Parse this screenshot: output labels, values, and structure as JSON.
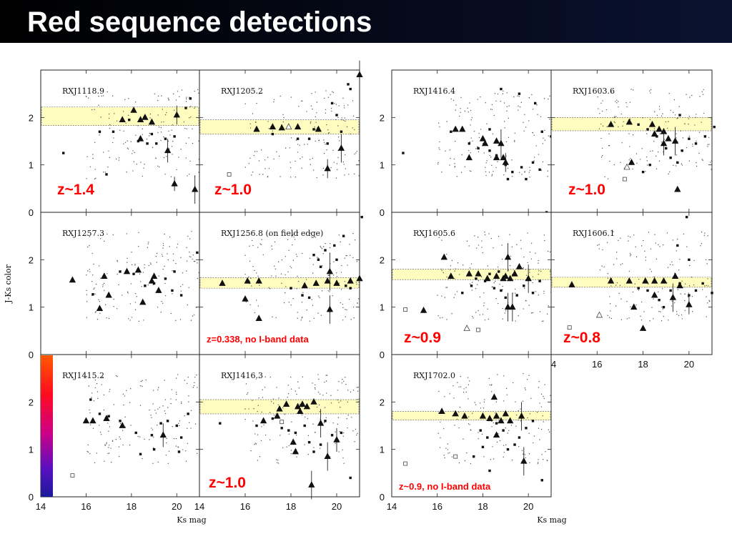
{
  "slide": {
    "title": "Red sequence detections"
  },
  "colors": {
    "title_bar": "#000000",
    "title_text": "#ffffff",
    "band_fill": "#fffcc0",
    "redshift_label": "#ff0000"
  },
  "chart_data": [
    {
      "type": "scatter",
      "block": "left",
      "name": "RXJ1118.9",
      "redshift_label": "z~1.4",
      "band": [
        1.83,
        2.22
      ],
      "triangles": [
        [
          17.6,
          1.95
        ],
        [
          18.1,
          2.15
        ],
        [
          18.4,
          1.95
        ],
        [
          18.6,
          2.0
        ],
        [
          18.9,
          1.9
        ],
        [
          20.0,
          2.05,
          0.2
        ],
        [
          18.4,
          1.55
        ],
        [
          19.6,
          1.3,
          0.25
        ],
        [
          19.9,
          0.6,
          0.15
        ],
        [
          20.8,
          0.48,
          0.3
        ]
      ],
      "squares": [
        [
          15.0,
          1.25
        ],
        [
          16.6,
          1.7
        ],
        [
          17.2,
          1.7
        ],
        [
          18.3,
          1.5
        ],
        [
          18.9,
          1.65
        ],
        [
          19.1,
          1.45
        ],
        [
          19.5,
          1.55
        ],
        [
          19.9,
          1.6
        ],
        [
          20.4,
          2.2
        ],
        [
          20.6,
          2.4
        ],
        [
          17.9,
          1.95
        ],
        [
          18.7,
          1.45
        ],
        [
          16.9,
          0.8
        ]
      ],
      "open_squares": []
    },
    {
      "type": "scatter",
      "block": "left",
      "name": "RXJ1205.2",
      "redshift_label": "z~1.0",
      "band": [
        1.65,
        1.95
      ],
      "triangles": [
        [
          16.5,
          1.75
        ],
        [
          17.6,
          1.78
        ],
        [
          18.3,
          1.8
        ],
        [
          19.2,
          1.75
        ],
        [
          19.6,
          0.92,
          0.2
        ],
        [
          20.2,
          1.35,
          0.3
        ],
        [
          21.0,
          2.9,
          0.3
        ],
        [
          17.2,
          1.8
        ]
      ],
      "squares": [
        [
          17.2,
          1.65
        ],
        [
          18.3,
          1.55
        ],
        [
          18.8,
          1.55
        ],
        [
          19.0,
          1.75
        ],
        [
          19.6,
          1.45
        ],
        [
          20.0,
          2.05
        ],
        [
          20.5,
          2.7
        ],
        [
          20.6,
          2.6
        ],
        [
          19.8,
          2.3
        ],
        [
          20.2,
          1.7
        ]
      ],
      "open_squares": [
        [
          15.3,
          0.8
        ]
      ],
      "open_triangles": [
        [
          17.9,
          1.8
        ]
      ]
    },
    {
      "type": "scatter",
      "block": "left",
      "name": "RXJ1257.3",
      "redshift_label": "",
      "band": null,
      "triangles": [
        [
          15.4,
          1.57
        ],
        [
          16.6,
          0.97
        ],
        [
          16.8,
          1.65
        ],
        [
          17.0,
          1.25
        ],
        [
          17.8,
          1.75
        ],
        [
          18.3,
          1.78
        ],
        [
          18.5,
          1.1
        ],
        [
          19.0,
          1.65
        ],
        [
          19.2,
          1.35
        ],
        [
          18.9,
          1.55
        ]
      ],
      "squares": [
        [
          16.3,
          1.27
        ],
        [
          17.5,
          1.75
        ],
        [
          18.1,
          1.7
        ],
        [
          18.6,
          1.45
        ],
        [
          19.0,
          1.5
        ],
        [
          19.5,
          1.6
        ],
        [
          19.8,
          1.35
        ],
        [
          20.2,
          1.25
        ],
        [
          20.9,
          2.15
        ],
        [
          19.9,
          1.75
        ]
      ],
      "open_squares": []
    },
    {
      "type": "scatter",
      "block": "left",
      "name": "RXJ1256.8 (on field edge)",
      "redshift_label": "z=0.338, no I-band data",
      "band": [
        1.4,
        1.62
      ],
      "triangles": [
        [
          15.0,
          1.5
        ],
        [
          16.1,
          1.55
        ],
        [
          16.6,
          1.55
        ],
        [
          16.6,
          0.76
        ],
        [
          16.0,
          1.17
        ],
        [
          18.6,
          1.45
        ],
        [
          19.1,
          1.5
        ],
        [
          19.6,
          1.55
        ],
        [
          19.7,
          0.95,
          0.3
        ],
        [
          20.0,
          1.5
        ],
        [
          20.6,
          1.55
        ],
        [
          21.0,
          1.6,
          0.25
        ],
        [
          19.7,
          1.75,
          0.4
        ]
      ],
      "squares": [
        [
          18.0,
          1.4
        ],
        [
          18.5,
          1.25
        ],
        [
          18.8,
          1.2
        ],
        [
          19.0,
          2.1
        ],
        [
          19.2,
          2.0
        ],
        [
          19.3,
          1.85
        ],
        [
          19.9,
          2.3
        ],
        [
          20.0,
          2.0
        ],
        [
          20.4,
          1.45
        ],
        [
          20.6,
          1.4
        ],
        [
          21.1,
          2.9
        ],
        [
          19.5,
          2.2
        ],
        [
          20.3,
          2.5
        ]
      ],
      "open_squares": []
    },
    {
      "type": "scatter",
      "block": "left",
      "name": "RXJ1415.2",
      "redshift_label": "",
      "band": null,
      "triangles": [
        [
          16.0,
          1.6
        ],
        [
          16.3,
          1.6
        ],
        [
          16.9,
          1.65
        ],
        [
          17.6,
          1.5
        ],
        [
          19.4,
          1.3,
          0.25
        ]
      ],
      "squares": [
        [
          14.3,
          0.9
        ],
        [
          16.2,
          2.05
        ],
        [
          16.6,
          1.75
        ],
        [
          17.0,
          1.7
        ],
        [
          17.5,
          1.6
        ],
        [
          18.2,
          1.35
        ],
        [
          18.4,
          0.9
        ],
        [
          18.9,
          1.3
        ],
        [
          19.3,
          1.55
        ],
        [
          19.6,
          1.6
        ],
        [
          20.0,
          1.5
        ],
        [
          20.1,
          0.95
        ],
        [
          20.5,
          1.75
        ],
        [
          20.2,
          1.25
        ],
        [
          19.0,
          1.0
        ]
      ],
      "open_squares": [
        [
          15.4,
          0.45
        ]
      ]
    },
    {
      "type": "scatter",
      "block": "left",
      "name": "RXJ1416.3",
      "redshift_label": "z~1.0",
      "band": [
        1.75,
        2.05
      ],
      "triangles": [
        [
          17.4,
          1.7
        ],
        [
          17.8,
          1.95
        ],
        [
          18.3,
          1.9
        ],
        [
          18.5,
          1.95
        ],
        [
          18.7,
          1.9
        ],
        [
          19.0,
          2.0
        ],
        [
          19.3,
          1.55,
          0.3
        ],
        [
          19.6,
          0.85,
          0.3
        ],
        [
          20.0,
          1.2,
          0.25
        ],
        [
          18.1,
          1.15
        ],
        [
          18.2,
          0.95
        ],
        [
          18.9,
          0.25,
          0.3
        ],
        [
          16.8,
          1.6
        ],
        [
          17.5,
          1.85
        ],
        [
          18.4,
          1.8
        ]
      ],
      "squares": [
        [
          17.2,
          1.65
        ],
        [
          17.6,
          1.45
        ],
        [
          17.9,
          1.4
        ],
        [
          18.2,
          1.35
        ],
        [
          18.6,
          1.5
        ],
        [
          18.8,
          1.15
        ],
        [
          19.0,
          0.95
        ],
        [
          19.3,
          1.1
        ],
        [
          19.5,
          1.6
        ],
        [
          19.8,
          1.3
        ],
        [
          20.2,
          1.35
        ],
        [
          20.6,
          0.4
        ],
        [
          14.9,
          1.55
        ],
        [
          16.5,
          1.5
        ]
      ],
      "open_squares": [
        [
          17.6,
          1.58
        ]
      ]
    },
    {
      "type": "scatter",
      "block": "right",
      "name": "RXJ1416.4",
      "redshift_label": "",
      "band": null,
      "triangles": [
        [
          16.8,
          1.75
        ],
        [
          17.1,
          1.75
        ],
        [
          18.0,
          1.55
        ],
        [
          18.1,
          1.45
        ],
        [
          18.6,
          1.5
        ],
        [
          18.8,
          1.45,
          0.3
        ],
        [
          19.0,
          1.05,
          0.2
        ],
        [
          17.4,
          1.15
        ],
        [
          18.6,
          1.15
        ],
        [
          18.9,
          1.15
        ]
      ],
      "squares": [
        [
          14.5,
          1.25
        ],
        [
          16.6,
          1.7
        ],
        [
          17.4,
          1.45
        ],
        [
          17.8,
          1.35
        ],
        [
          18.3,
          1.3
        ],
        [
          18.6,
          1.2
        ],
        [
          19.0,
          1.0
        ],
        [
          19.3,
          0.85
        ],
        [
          19.7,
          0.95
        ],
        [
          19.9,
          0.7
        ],
        [
          20.2,
          1.05
        ],
        [
          20.5,
          0.9
        ],
        [
          20.6,
          1.7
        ],
        [
          21.0,
          1.6
        ],
        [
          18.8,
          2.6
        ],
        [
          19.6,
          2.5
        ],
        [
          20.3,
          2.3
        ],
        [
          18.3,
          1.75
        ],
        [
          19.1,
          0.7
        ],
        [
          20.8,
          0.0
        ]
      ],
      "open_squares": []
    },
    {
      "type": "scatter",
      "block": "right",
      "name": "RXJ1603.6",
      "redshift_label": "z~1.0",
      "band": [
        1.72,
        2.0
      ],
      "triangles": [
        [
          16.6,
          1.85
        ],
        [
          17.4,
          1.9
        ],
        [
          18.4,
          1.85
        ],
        [
          18.7,
          1.75
        ],
        [
          18.9,
          1.7
        ],
        [
          18.9,
          1.45,
          0.25
        ],
        [
          18.5,
          1.65
        ],
        [
          19.1,
          1.55
        ],
        [
          19.4,
          1.5,
          0.3
        ],
        [
          17.5,
          1.05
        ],
        [
          19.5,
          0.48
        ]
      ],
      "squares": [
        [
          17.8,
          1.85
        ],
        [
          18.2,
          1.75
        ],
        [
          18.6,
          1.6
        ],
        [
          19.0,
          1.35
        ],
        [
          19.2,
          1.15
        ],
        [
          19.5,
          1.05
        ],
        [
          19.7,
          1.3
        ],
        [
          20.0,
          1.55
        ],
        [
          20.3,
          1.45
        ],
        [
          20.7,
          1.6
        ],
        [
          21.1,
          1.8
        ],
        [
          18.0,
          0.85
        ],
        [
          18.3,
          1.0
        ],
        [
          19.6,
          2.05
        ]
      ],
      "open_squares": [
        [
          17.2,
          0.7
        ]
      ],
      "open_triangles": [
        [
          17.3,
          0.95
        ]
      ]
    },
    {
      "type": "scatter",
      "block": "right",
      "name": "RXJ1605.6",
      "redshift_label": "z~0.9",
      "band": [
        1.58,
        1.8
      ],
      "triangles": [
        [
          16.6,
          1.65
        ],
        [
          17.4,
          1.7
        ],
        [
          17.8,
          1.7
        ],
        [
          18.2,
          1.6
        ],
        [
          18.6,
          1.65
        ],
        [
          18.9,
          1.6
        ],
        [
          19.0,
          1.65
        ],
        [
          19.2,
          1.6
        ],
        [
          19.4,
          1.7
        ],
        [
          19.1,
          2.05,
          0.3
        ],
        [
          19.6,
          1.85
        ],
        [
          19.1,
          1.0,
          0.3
        ],
        [
          19.3,
          1.0,
          0.3
        ],
        [
          20.0,
          1.6,
          0.3
        ],
        [
          15.4,
          0.93
        ],
        [
          16.3,
          2.05
        ]
      ],
      "squares": [
        [
          17.1,
          1.3
        ],
        [
          17.5,
          1.45
        ],
        [
          17.7,
          1.6
        ],
        [
          18.1,
          1.55
        ],
        [
          18.5,
          1.4
        ],
        [
          18.8,
          1.35
        ],
        [
          19.0,
          1.2
        ],
        [
          19.5,
          1.25
        ],
        [
          19.8,
          1.45
        ],
        [
          20.2,
          1.3
        ],
        [
          20.5,
          1.55
        ],
        [
          18.3,
          1.7
        ],
        [
          18.7,
          1.75
        ]
      ],
      "open_squares": [
        [
          14.6,
          0.95
        ],
        [
          17.8,
          0.52
        ]
      ],
      "open_triangles": [
        [
          17.3,
          0.55
        ]
      ]
    },
    {
      "type": "scatter",
      "block": "right",
      "name": "RXJ1606.1",
      "redshift_label": "z~0.8",
      "band": [
        1.42,
        1.63
      ],
      "triangles": [
        [
          14.9,
          1.47
        ],
        [
          16.6,
          1.55
        ],
        [
          17.4,
          1.55
        ],
        [
          18.1,
          1.55
        ],
        [
          18.5,
          1.55
        ],
        [
          18.9,
          1.55
        ],
        [
          19.4,
          1.65
        ],
        [
          19.6,
          1.45
        ],
        [
          19.3,
          1.2,
          0.3
        ],
        [
          20.0,
          1.05,
          0.2
        ],
        [
          17.6,
          1.0
        ],
        [
          18.0,
          0.55
        ],
        [
          18.5,
          1.25
        ]
      ],
      "squares": [
        [
          17.8,
          1.4
        ],
        [
          18.2,
          1.35
        ],
        [
          18.7,
          1.15
        ],
        [
          18.9,
          1.0
        ],
        [
          19.2,
          1.35
        ],
        [
          19.6,
          1.5
        ],
        [
          20.0,
          1.25
        ],
        [
          20.3,
          1.35
        ],
        [
          20.6,
          1.5
        ],
        [
          21.0,
          1.3
        ],
        [
          19.5,
          2.3
        ],
        [
          20.0,
          2.0
        ],
        [
          19.9,
          2.9
        ]
      ],
      "open_squares": [
        [
          14.8,
          0.57
        ]
      ],
      "open_triangles": [
        [
          16.1,
          0.83
        ]
      ]
    },
    {
      "type": "scatter",
      "block": "right",
      "name": "RXJ1702.0",
      "redshift_label": "z~0.9, no I-band data",
      "band": [
        1.62,
        1.8
      ],
      "triangles": [
        [
          16.2,
          1.8
        ],
        [
          16.8,
          1.75
        ],
        [
          17.2,
          1.7
        ],
        [
          18.0,
          1.7
        ],
        [
          18.3,
          1.65
        ],
        [
          18.5,
          2.1
        ],
        [
          18.6,
          1.7
        ],
        [
          18.8,
          1.6
        ],
        [
          19.0,
          1.75
        ],
        [
          19.2,
          1.6
        ],
        [
          19.7,
          1.7,
          0.3
        ],
        [
          19.8,
          0.75,
          0.3
        ],
        [
          18.6,
          1.3
        ]
      ],
      "squares": [
        [
          17.6,
          0.85
        ],
        [
          17.9,
          1.4
        ],
        [
          18.2,
          1.25
        ],
        [
          18.6,
          1.55
        ],
        [
          18.9,
          1.4
        ],
        [
          19.1,
          1.0
        ],
        [
          19.4,
          1.1
        ],
        [
          19.6,
          1.25
        ],
        [
          19.9,
          1.45
        ],
        [
          20.2,
          1.6
        ],
        [
          20.6,
          0.35
        ],
        [
          18.3,
          0.55
        ],
        [
          18.0,
          1.05
        ]
      ],
      "open_squares": [
        [
          14.6,
          0.7
        ],
        [
          16.8,
          0.85
        ]
      ]
    }
  ],
  "axes": {
    "x_range": [
      14,
      21
    ],
    "y_range": [
      0,
      3
    ],
    "y_ticks": [
      "0",
      "1",
      "2"
    ],
    "x_ticks": [
      "14",
      "16",
      "18",
      "20"
    ],
    "ylabel": "J-Ks color",
    "xlabel": "Ks mag"
  }
}
